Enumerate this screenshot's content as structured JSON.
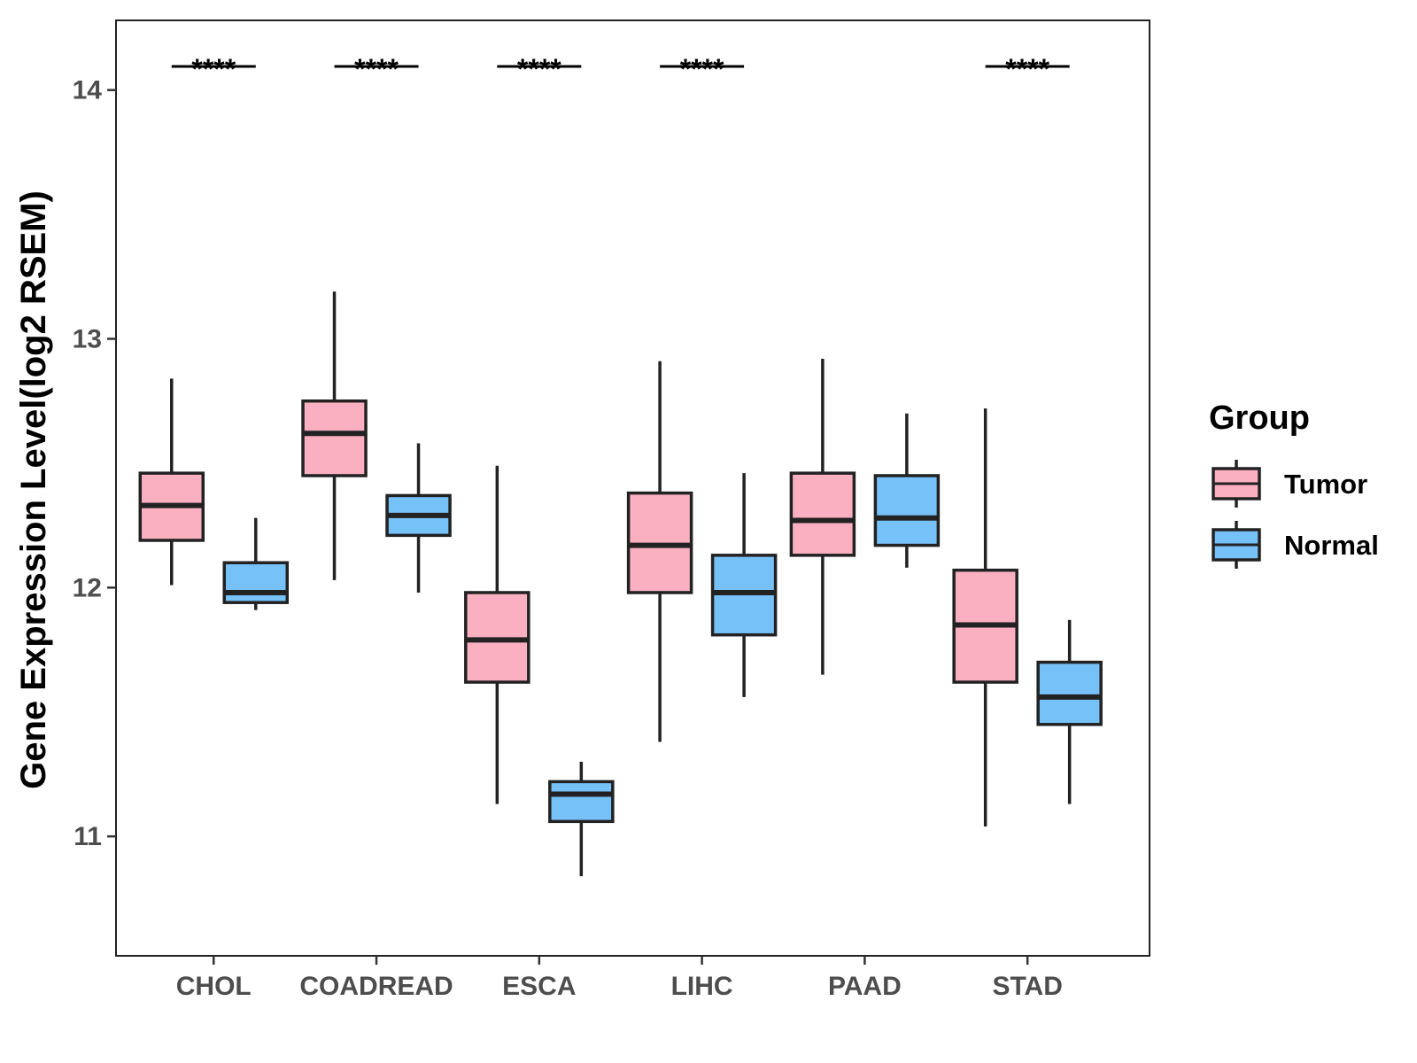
{
  "chart_data": {
    "type": "boxplot",
    "title": "",
    "xlabel": "",
    "ylabel": "Gene Expression Level(log2 RSEM)",
    "ylim": [
      10.52,
      14.28
    ],
    "yticks": [
      11,
      12,
      13,
      14
    ],
    "ytick_labels": [
      "11",
      "12",
      "13",
      "14"
    ],
    "categories": [
      "CHOL",
      "COADREAD",
      "ESCA",
      "LIHC",
      "PAAD",
      "STAD"
    ],
    "legend": {
      "title": "Group",
      "position": "right",
      "entries": [
        "Tumor",
        "Normal"
      ]
    },
    "colors": {
      "Tumor": "#FBB0C2",
      "Normal": "#77C1F9",
      "outline": "#222222"
    },
    "series": [
      {
        "name": "Tumor",
        "boxes": [
          {
            "min": 12.01,
            "q1": 12.19,
            "median": 12.33,
            "q3": 12.46,
            "max": 12.84
          },
          {
            "min": 12.03,
            "q1": 12.45,
            "median": 12.62,
            "q3": 12.75,
            "max": 13.19
          },
          {
            "min": 11.13,
            "q1": 11.62,
            "median": 11.79,
            "q3": 11.98,
            "max": 12.49
          },
          {
            "min": 11.38,
            "q1": 11.98,
            "median": 12.17,
            "q3": 12.38,
            "max": 12.91
          },
          {
            "min": 11.65,
            "q1": 12.13,
            "median": 12.27,
            "q3": 12.46,
            "max": 12.92
          },
          {
            "min": 11.04,
            "q1": 11.62,
            "median": 11.85,
            "q3": 12.07,
            "max": 12.72
          }
        ]
      },
      {
        "name": "Normal",
        "boxes": [
          {
            "min": 11.91,
            "q1": 11.94,
            "median": 11.98,
            "q3": 12.1,
            "max": 12.28
          },
          {
            "min": 11.98,
            "q1": 12.21,
            "median": 12.29,
            "q3": 12.37,
            "max": 12.58
          },
          {
            "min": 10.84,
            "q1": 11.06,
            "median": 11.17,
            "q3": 11.22,
            "max": 11.3
          },
          {
            "min": 11.56,
            "q1": 11.81,
            "median": 11.98,
            "q3": 12.13,
            "max": 12.46
          },
          {
            "min": 12.08,
            "q1": 12.17,
            "median": 12.28,
            "q3": 12.45,
            "max": 12.7
          },
          {
            "min": 11.13,
            "q1": 11.45,
            "median": 11.56,
            "q3": 11.7,
            "max": 11.87
          }
        ]
      }
    ],
    "significance": [
      "****",
      "****",
      "****",
      "****",
      "",
      "****"
    ]
  }
}
